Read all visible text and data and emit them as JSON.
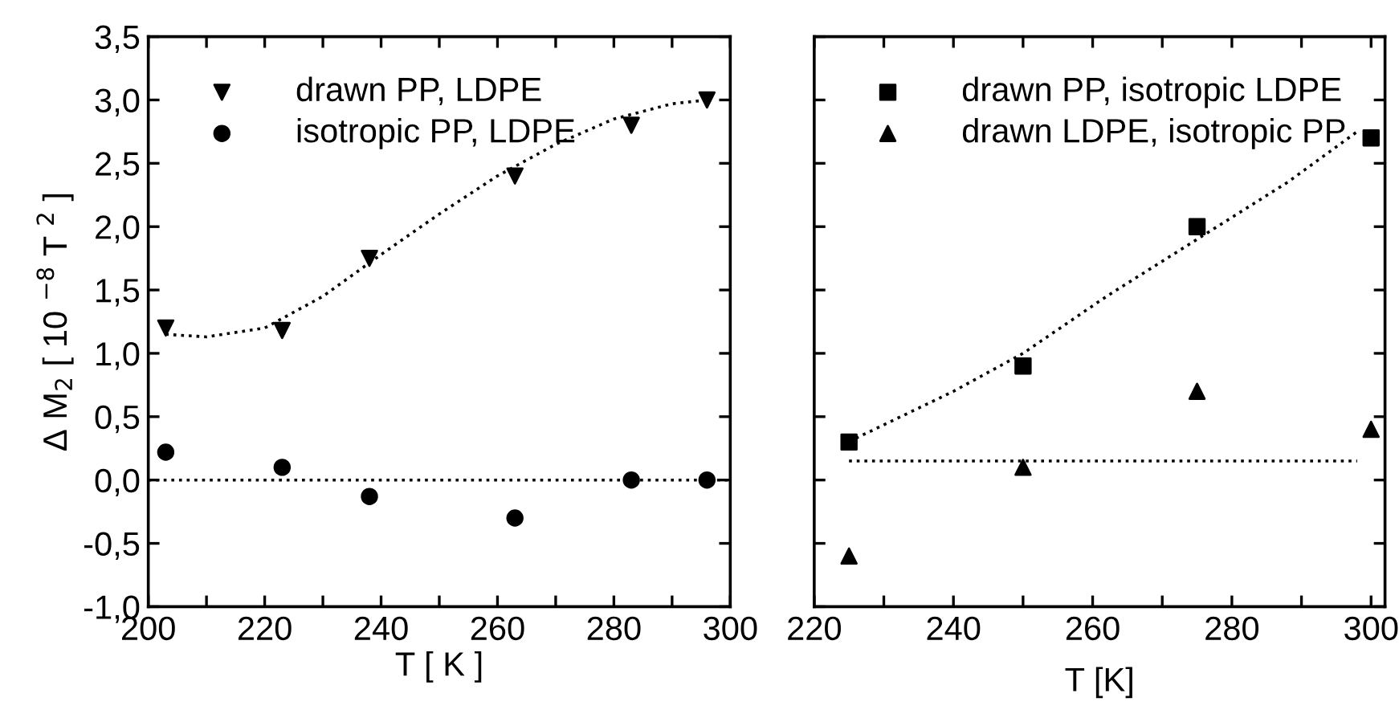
{
  "chart_data": [
    {
      "type": "scatter",
      "xlabel": "T [ K ]",
      "ylabel": "Δ M$_{2}$ [ 10 $^{−8}$ T $^{2}$ ]",
      "xlim": [
        200,
        300
      ],
      "ylim": [
        -1.0,
        3.5
      ],
      "xticks": [
        200,
        {
          "value": 210,
          "label": null
        },
        220,
        {
          "value": 230,
          "label": null
        },
        240,
        {
          "value": 250,
          "label": null
        },
        260,
        {
          "value": 270,
          "label": null
        },
        280,
        {
          "value": 290,
          "label": null
        },
        300
      ],
      "yticks": [
        {
          "value": -1.0,
          "label": "-1,0"
        },
        {
          "value": -0.5,
          "label": "-0,5"
        },
        {
          "value": 0.0,
          "label": "0,0"
        },
        {
          "value": 0.5,
          "label": "0,5"
        },
        {
          "value": 1.0,
          "label": "1,0"
        },
        {
          "value": 1.5,
          "label": "1,5"
        },
        {
          "value": 2.0,
          "label": "2,0"
        },
        {
          "value": 2.5,
          "label": "2,5"
        },
        {
          "value": 3.0,
          "label": "3,0"
        },
        {
          "value": 3.5,
          "label": "3,5"
        }
      ],
      "legend": "top left",
      "grid": false,
      "x": [
        203,
        223,
        238,
        263,
        283,
        296
      ],
      "series": [
        {
          "name": "drawn PP, LDPE",
          "color": "#000000",
          "marker": "triangle_down",
          "values": [
            1.2,
            1.18,
            1.75,
            2.4,
            2.8,
            3.0
          ]
        },
        {
          "name": "isotropic PP, LDPE",
          "color": "#000000",
          "marker": "circle",
          "values": [
            0.22,
            0.1,
            -0.13,
            -0.3,
            0.0,
            0.0
          ]
        },
        {
          "type": "line",
          "color": "#000000",
          "line_style": "dotted",
          "x": [
            203,
            210,
            220,
            230,
            240,
            250,
            260,
            270,
            280,
            290,
            296
          ],
          "values": [
            1.15,
            1.13,
            1.2,
            1.45,
            1.78,
            2.1,
            2.4,
            2.65,
            2.85,
            2.97,
            3.0
          ]
        }
      ],
      "ref_lines": [
        {
          "axis": "y",
          "value": 0.0,
          "color": "#000000",
          "line_style": "dotted"
        }
      ]
    },
    {
      "type": "scatter",
      "xlabel": "T [K]",
      "xlim": [
        220,
        302
      ],
      "ylim": [
        -1.0,
        3.5
      ],
      "tick_labels": "x",
      "xticks": [
        220,
        {
          "value": 230,
          "label": null
        },
        240,
        {
          "value": 250,
          "label": null
        },
        260,
        {
          "value": 270,
          "label": null
        },
        280,
        {
          "value": 290,
          "label": null
        },
        300
      ],
      "yticks": [
        -1.0,
        -0.5,
        0.0,
        0.5,
        1.0,
        1.5,
        2.0,
        2.5,
        3.0,
        3.5
      ],
      "legend": "top left",
      "grid": false,
      "x": [
        225,
        250,
        275,
        300
      ],
      "series": [
        {
          "name": "drawn PP, isotropic LDPE",
          "color": "#000000",
          "marker": "square",
          "values": [
            0.3,
            0.9,
            2.0,
            2.7
          ]
        },
        {
          "name": "drawn LDPE, isotropic PP",
          "color": "#000000",
          "marker": "triangle",
          "values": [
            -0.6,
            0.1,
            0.7,
            0.4
          ]
        },
        {
          "type": "line",
          "color": "#000000",
          "line_style": "dotted",
          "x": [
            226,
            240,
            250,
            262,
            275,
            288,
            298
          ],
          "values": [
            0.33,
            0.7,
            1.0,
            1.45,
            1.9,
            2.35,
            2.75
          ]
        },
        {
          "type": "line",
          "color": "#000000",
          "line_style": "dotted",
          "x": [
            225,
            298
          ],
          "values": [
            0.15,
            0.15
          ]
        }
      ]
    }
  ]
}
